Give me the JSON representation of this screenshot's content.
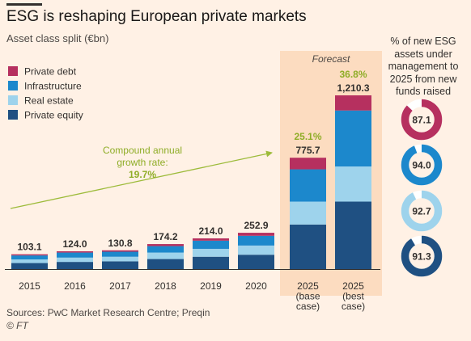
{
  "title": "ESG is reshaping European private markets",
  "subtitle": "Asset class split (€bn)",
  "footer": {
    "sources": "Sources: PwC Market Research Centre; Preqin",
    "copyright": "© FT"
  },
  "forecast_label": "Forecast",
  "cagr_annotation": {
    "line1": "Compound annual",
    "line2": "growth rate:",
    "value": "19.7%"
  },
  "side_panel": {
    "title": "% of new ESG assets under management to 2025 from new funds raised"
  },
  "colors": {
    "background": "#fff1e5",
    "forecast_band": "#fcdcc0",
    "private_debt": "#b6305f",
    "infrastructure": "#1c88cc",
    "real_estate": "#9ed3ec",
    "private_equity": "#1f5082",
    "growth_label": "#8fad27"
  },
  "chart_data": [
    {
      "type": "bar",
      "stacked": true,
      "title": "ESG is reshaping European private markets",
      "subtitle": "Asset class split (€bn)",
      "categories": [
        [
          "2015"
        ],
        [
          "2016"
        ],
        [
          "2017"
        ],
        [
          "2018"
        ],
        [
          "2019"
        ],
        [
          "2020"
        ],
        [
          "2025",
          "(base",
          "case)"
        ],
        [
          "2025",
          "(best",
          "case)"
        ]
      ],
      "series": [
        {
          "name": "Private equity",
          "values": [
            42,
            50,
            54,
            70,
            86,
            100,
            310,
            470
          ]
        },
        {
          "name": "Real estate",
          "values": [
            25,
            30,
            32,
            45,
            55,
            64,
            160,
            245
          ]
        },
        {
          "name": "Infrastructure",
          "values": [
            28,
            35,
            35,
            45,
            57,
            68,
            225,
            390
          ]
        },
        {
          "name": "Private debt",
          "values": [
            8.1,
            9,
            9.8,
            14.2,
            16,
            20.9,
            80.7,
            105.3
          ]
        }
      ],
      "totals": [
        "103.1",
        "124.0",
        "130.8",
        "174.2",
        "214.0",
        "252.9",
        "775.7",
        "1,210.3"
      ],
      "growth_labels": [
        null,
        null,
        null,
        null,
        null,
        null,
        "25.1%",
        "36.8%"
      ],
      "forecast_categories": [
        6,
        7
      ],
      "legend": {
        "position": "top-left",
        "order": [
          "Private debt",
          "Infrastructure",
          "Real estate",
          "Private equity"
        ]
      },
      "grid": false
    },
    {
      "type": "pie",
      "variant": "donut",
      "title": "% of new ESG assets under management to 2025 from new funds raised",
      "series": [
        {
          "name": "Private debt",
          "value": 87.1,
          "label": "87.1"
        },
        {
          "name": "Infrastructure",
          "value": 94.0,
          "label": "94.0"
        },
        {
          "name": "Real estate",
          "value": 92.7,
          "label": "92.7"
        },
        {
          "name": "Private equity",
          "value": 91.3,
          "label": "91.3"
        }
      ]
    }
  ]
}
